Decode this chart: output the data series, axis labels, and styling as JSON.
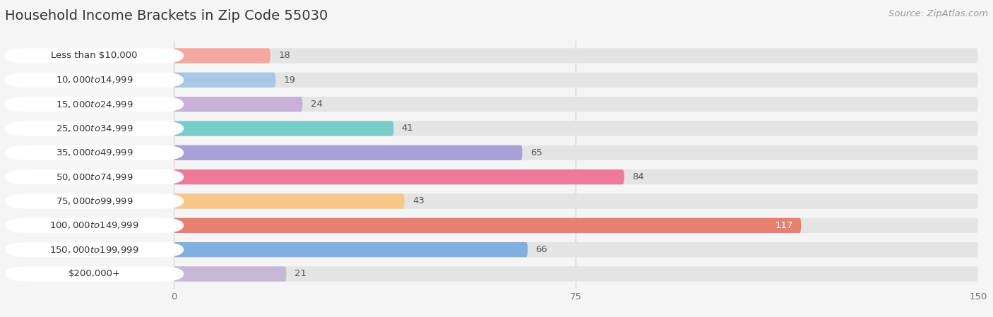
{
  "title": "Household Income Brackets in Zip Code 55030",
  "source": "Source: ZipAtlas.com",
  "categories": [
    "Less than $10,000",
    "$10,000 to $14,999",
    "$15,000 to $24,999",
    "$25,000 to $34,999",
    "$35,000 to $49,999",
    "$50,000 to $74,999",
    "$75,000 to $99,999",
    "$100,000 to $149,999",
    "$150,000 to $199,999",
    "$200,000+"
  ],
  "values": [
    18,
    19,
    24,
    41,
    65,
    84,
    43,
    117,
    66,
    21
  ],
  "bar_colors": [
    "#f4a8a0",
    "#a8c8e8",
    "#c8b0d8",
    "#78ccc8",
    "#a8a0d8",
    "#f07898",
    "#f8c888",
    "#e88070",
    "#80b0e0",
    "#c8b8d8"
  ],
  "bg_color": "#f5f5f5",
  "bar_bg_color": "#e4e4e4",
  "xlim": [
    0,
    150
  ],
  "xticks": [
    0,
    75,
    150
  ],
  "title_fontsize": 14,
  "label_fontsize": 9.5,
  "value_fontsize": 9.5,
  "source_fontsize": 9.5,
  "bar_height": 0.62
}
